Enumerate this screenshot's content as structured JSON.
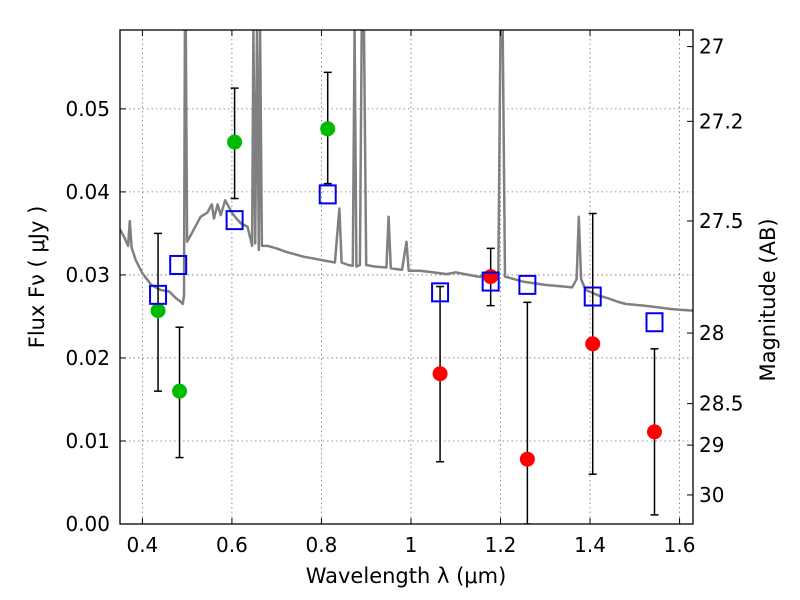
{
  "chart_data": {
    "type": "scatter",
    "xlabel": "Wavelength  λ (μm)",
    "ylabel": "Flux  Fν  ( μJy )",
    "ylabel_right": "Magnitude (AB)",
    "xlim": [
      0.35,
      1.63
    ],
    "ylim": [
      0.0,
      0.0595
    ],
    "grid": true,
    "x_ticks": [
      0.4,
      0.6,
      0.8,
      1.0,
      1.2,
      1.4,
      1.6
    ],
    "x_tick_labels": [
      "0.4",
      "0.6",
      "0.8",
      "1",
      "1.2",
      "1.4",
      "1.6"
    ],
    "y_ticks": [
      0.0,
      0.01,
      0.02,
      0.03,
      0.04,
      0.05
    ],
    "y_tick_labels": [
      "0.00",
      "0.01",
      "0.02",
      "0.03",
      "0.04",
      "0.05"
    ],
    "right_ticks": [
      {
        "label": "27",
        "flux": 0.0575
      },
      {
        "label": "27.2",
        "flux": 0.0485
      },
      {
        "label": "27.5",
        "flux": 0.0365
      },
      {
        "label": "28",
        "flux": 0.023
      },
      {
        "label": "28.5",
        "flux": 0.0145
      },
      {
        "label": "29",
        "flux": 0.0095
      },
      {
        "label": "30",
        "flux": 0.0035
      }
    ],
    "series": [
      {
        "name": "detections",
        "color": "#00bb00",
        "points": [
          {
            "x": 0.435,
            "y": 0.0257,
            "err_lo": 0.0097,
            "err_hi": 0.0093
          },
          {
            "x": 0.483,
            "y": 0.016,
            "err_lo": 0.008,
            "err_hi": 0.0077
          },
          {
            "x": 0.606,
            "y": 0.046,
            "err_lo": 0.0068,
            "err_hi": 0.0065
          },
          {
            "x": 0.814,
            "y": 0.0476,
            "err_lo": 0.0066,
            "err_hi": 0.0068
          }
        ]
      },
      {
        "name": "upper-limits",
        "color": "#ff0000",
        "points": [
          {
            "x": 1.065,
            "y": 0.0181,
            "err_lo": 0.0106,
            "err_hi": 0.0105
          },
          {
            "x": 1.178,
            "y": 0.0298,
            "err_lo": 0.0035,
            "err_hi": 0.0034
          },
          {
            "x": 1.26,
            "y": 0.0078,
            "err_lo": 0.0078,
            "err_hi": 0.0189
          },
          {
            "x": 1.406,
            "y": 0.0217,
            "err_lo": 0.0157,
            "err_hi": 0.0157
          },
          {
            "x": 1.544,
            "y": 0.0111,
            "err_lo": 0.01,
            "err_hi": 0.01
          }
        ]
      },
      {
        "name": "model-photometry",
        "color": "#0000ee",
        "marker": "open-square",
        "points": [
          {
            "x": 0.435,
            "y": 0.0276
          },
          {
            "x": 0.48,
            "y": 0.0312
          },
          {
            "x": 0.606,
            "y": 0.0366
          },
          {
            "x": 0.814,
            "y": 0.0397
          },
          {
            "x": 1.065,
            "y": 0.0279
          },
          {
            "x": 1.178,
            "y": 0.0292
          },
          {
            "x": 1.26,
            "y": 0.0288
          },
          {
            "x": 1.406,
            "y": 0.0274
          },
          {
            "x": 1.544,
            "y": 0.0243
          }
        ]
      }
    ],
    "spectrum": {
      "name": "template-spectrum",
      "color": "#808080",
      "points": [
        [
          0.35,
          0.0355
        ],
        [
          0.36,
          0.0345
        ],
        [
          0.368,
          0.0335
        ],
        [
          0.372,
          0.0365
        ],
        [
          0.376,
          0.0333
        ],
        [
          0.385,
          0.0318
        ],
        [
          0.4,
          0.0302
        ],
        [
          0.42,
          0.0288
        ],
        [
          0.44,
          0.0282
        ],
        [
          0.46,
          0.028
        ],
        [
          0.475,
          0.0272
        ],
        [
          0.485,
          0.0268
        ],
        [
          0.49,
          0.0265
        ],
        [
          0.493,
          0.0275
        ],
        [
          0.495,
          0.0595
        ],
        [
          0.497,
          0.0595
        ],
        [
          0.5,
          0.034
        ],
        [
          0.505,
          0.0345
        ],
        [
          0.515,
          0.0355
        ],
        [
          0.53,
          0.037
        ],
        [
          0.545,
          0.0375
        ],
        [
          0.555,
          0.0385
        ],
        [
          0.56,
          0.0368
        ],
        [
          0.568,
          0.0385
        ],
        [
          0.575,
          0.0372
        ],
        [
          0.585,
          0.039
        ],
        [
          0.59,
          0.0385
        ],
        [
          0.6,
          0.0375
        ],
        [
          0.61,
          0.0368
        ],
        [
          0.62,
          0.0362
        ],
        [
          0.635,
          0.0358
        ],
        [
          0.645,
          0.0335
        ],
        [
          0.648,
          0.0595
        ],
        [
          0.652,
          0.0338
        ],
        [
          0.656,
          0.0595
        ],
        [
          0.66,
          0.033
        ],
        [
          0.663,
          0.0595
        ],
        [
          0.667,
          0.0335
        ],
        [
          0.68,
          0.0335
        ],
        [
          0.7,
          0.0332
        ],
        [
          0.72,
          0.0328
        ],
        [
          0.74,
          0.0325
        ],
        [
          0.76,
          0.0322
        ],
        [
          0.78,
          0.032
        ],
        [
          0.8,
          0.0318
        ],
        [
          0.83,
          0.0315
        ],
        [
          0.84,
          0.038
        ],
        [
          0.845,
          0.0315
        ],
        [
          0.86,
          0.0312
        ],
        [
          0.87,
          0.0311
        ],
        [
          0.874,
          0.0595
        ],
        [
          0.878,
          0.031
        ],
        [
          0.886,
          0.0312
        ],
        [
          0.89,
          0.0595
        ],
        [
          0.895,
          0.0595
        ],
        [
          0.9,
          0.0312
        ],
        [
          0.92,
          0.031
        ],
        [
          0.945,
          0.0309
        ],
        [
          0.95,
          0.037
        ],
        [
          0.955,
          0.0308
        ],
        [
          0.98,
          0.0306
        ],
        [
          0.99,
          0.034
        ],
        [
          0.995,
          0.0305
        ],
        [
          1.02,
          0.0305
        ],
        [
          1.05,
          0.0303
        ],
        [
          1.08,
          0.0301
        ],
        [
          1.1,
          0.0303
        ],
        [
          1.12,
          0.0301
        ],
        [
          1.15,
          0.0298
        ],
        [
          1.18,
          0.0297
        ],
        [
          1.195,
          0.0298
        ],
        [
          1.2,
          0.0595
        ],
        [
          1.205,
          0.0595
        ],
        [
          1.21,
          0.0298
        ],
        [
          1.25,
          0.0292
        ],
        [
          1.3,
          0.0288
        ],
        [
          1.34,
          0.0286
        ],
        [
          1.36,
          0.0285
        ],
        [
          1.37,
          0.0295
        ],
        [
          1.375,
          0.037
        ],
        [
          1.38,
          0.0295
        ],
        [
          1.39,
          0.0282
        ],
        [
          1.42,
          0.0275
        ],
        [
          1.44,
          0.0272
        ],
        [
          1.46,
          0.0268
        ],
        [
          1.48,
          0.0265
        ],
        [
          1.5,
          0.0264
        ],
        [
          1.52,
          0.0263
        ],
        [
          1.55,
          0.0261
        ],
        [
          1.58,
          0.0259
        ],
        [
          1.6,
          0.0258
        ],
        [
          1.63,
          0.0257
        ]
      ]
    }
  }
}
